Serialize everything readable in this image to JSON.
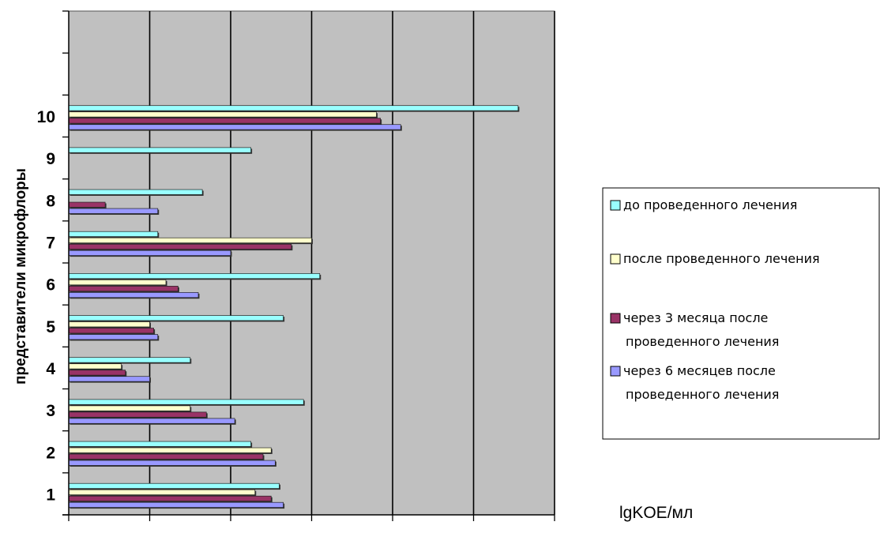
{
  "chart_data": {
    "type": "bar",
    "orientation": "horizontal",
    "ylabel": "представители микрофлоры",
    "xlabel": "lgKOE/мл",
    "xlim": [
      0,
      12
    ],
    "xticks": [
      0,
      2,
      4,
      6,
      8,
      10,
      12
    ],
    "categories": [
      "1",
      "2",
      "3",
      "4",
      "5",
      "6",
      "7",
      "8",
      "9",
      "10"
    ],
    "category_slots": 12,
    "grid": "vertical",
    "legend_position": "right",
    "plot_background": "#c0c0c0",
    "series": [
      {
        "name": "до проведенного лечения",
        "color": "#99ffff",
        "values": [
          5.2,
          4.5,
          5.8,
          3.0,
          5.3,
          6.2,
          2.2,
          3.3,
          4.5,
          11.1
        ]
      },
      {
        "name": "после проведенного лечения",
        "color": "#ffffcc",
        "values": [
          4.6,
          5.0,
          3.0,
          1.3,
          2.0,
          2.4,
          6.0,
          0,
          0,
          7.6
        ]
      },
      {
        "name": "через 3 месяца после проведенного лечения",
        "color": "#993366",
        "values": [
          5.0,
          4.8,
          3.4,
          1.4,
          2.1,
          2.7,
          5.5,
          0.9,
          0,
          7.7
        ]
      },
      {
        "name": "через 6 месяцев после проведенного лечения",
        "color": "#9999ff",
        "values": [
          5.3,
          5.1,
          4.1,
          2.0,
          2.2,
          3.2,
          4.0,
          2.2,
          0,
          8.2
        ]
      }
    ],
    "legend_lines": [
      [
        "до проведенного лечения"
      ],
      [
        "после проведенного лечения"
      ],
      [
        "через 3 месяца после",
        "проведенного лечения"
      ],
      [
        "через 6 месяцев после",
        "проведенного лечения"
      ]
    ]
  }
}
